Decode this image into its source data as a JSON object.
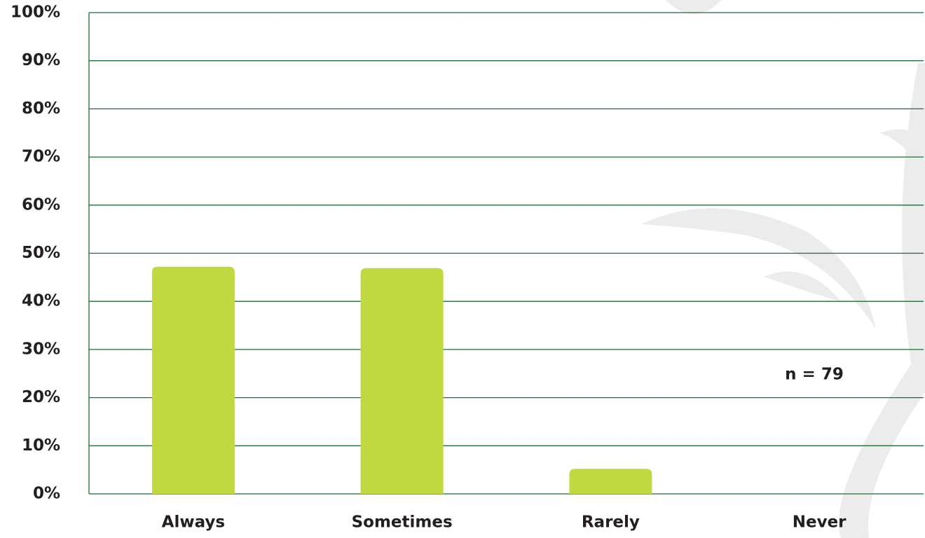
{
  "chart_data": {
    "type": "bar",
    "categories": [
      "Always",
      "Sometimes",
      "Rarely",
      "Never"
    ],
    "values": [
      47.2,
      46.9,
      5.2,
      0
    ],
    "color": "#c0d940",
    "ylim": [
      0,
      100
    ],
    "yticks": [
      {
        "value": 0,
        "label": "0%"
      },
      {
        "value": 10,
        "label": "10%"
      },
      {
        "value": 20,
        "label": "20%"
      },
      {
        "value": 30,
        "label": "30%"
      },
      {
        "value": 40,
        "label": "40%"
      },
      {
        "value": 50,
        "label": "50%"
      },
      {
        "value": 60,
        "label": "60%"
      },
      {
        "value": 70,
        "label": "70%"
      },
      {
        "value": 80,
        "label": "80%"
      },
      {
        "value": 90,
        "label": "90%"
      },
      {
        "value": 100,
        "label": "100%"
      }
    ],
    "grid": true,
    "annotation": "n = 79"
  }
}
